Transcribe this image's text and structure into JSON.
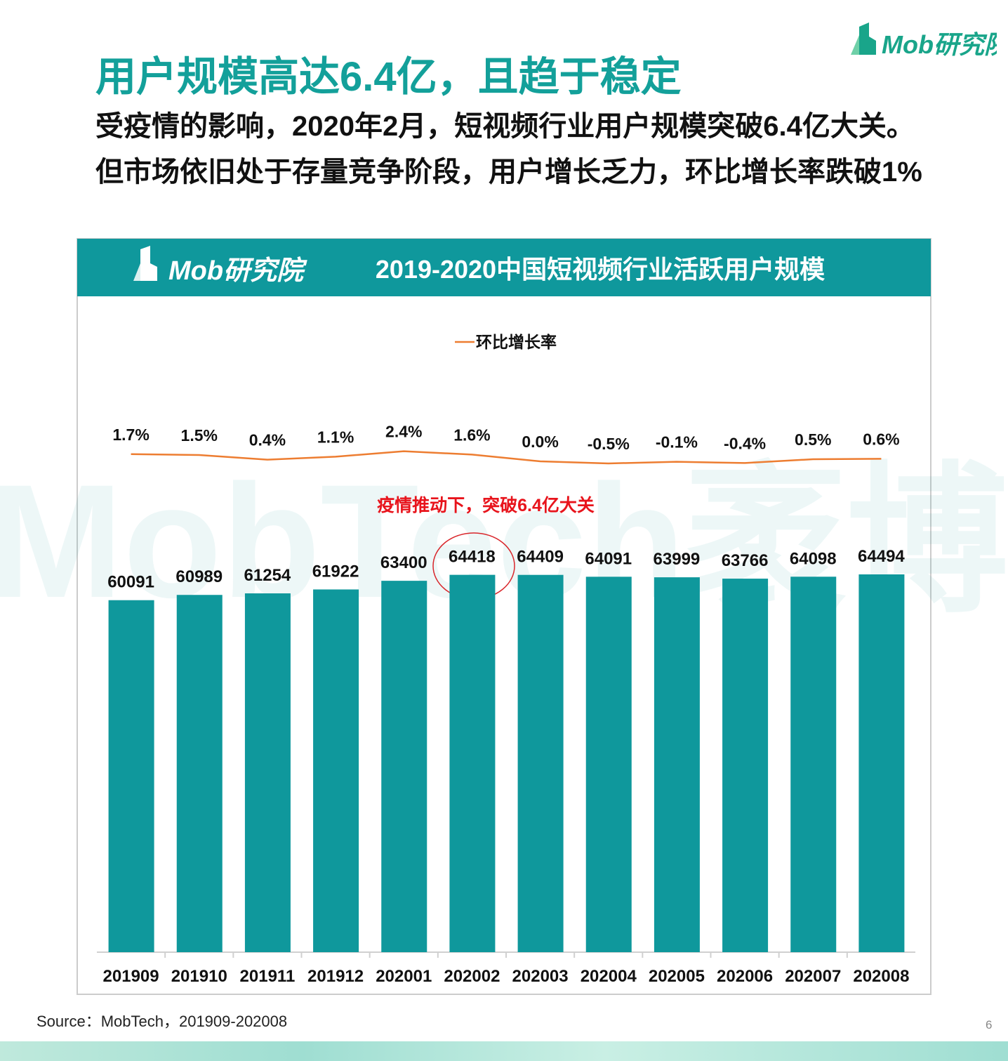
{
  "header": {
    "title": "用户规模高达6.4亿，且趋于稳定",
    "subtitle": "受疫情的影响，2020年2月，短视频行业用户规模突破6.4亿大关。但市场依旧处于存量竞争阶段，用户增长乏力，环比增长率跌破1%",
    "logo": "Mob研究院"
  },
  "chart_data": {
    "type": "bar",
    "title": "2019-2020中国短视频行业活跃用户规模",
    "brand": "Mob研究院",
    "watermark": "MobTech袤博",
    "annotation": "疫情推动下，突破6.4亿大关",
    "categories": [
      "201909",
      "201910",
      "201911",
      "201912",
      "202001",
      "202002",
      "202003",
      "202004",
      "202005",
      "202006",
      "202007",
      "202008"
    ],
    "series": [
      {
        "type": "bar",
        "color": "#0f989c",
        "values": [
          60091,
          60989,
          61254,
          61922,
          63400,
          64418,
          64409,
          64091,
          63999,
          63766,
          64098,
          64494
        ]
      },
      {
        "type": "line",
        "name": "环比增长率",
        "color": "#ed7d31",
        "values": [
          1.7,
          1.5,
          0.4,
          1.1,
          2.4,
          1.6,
          0.0,
          -0.5,
          -0.1,
          -0.4,
          0.5,
          0.6
        ],
        "value_labels": [
          "1.7%",
          "1.5%",
          "0.4%",
          "1.1%",
          "2.4%",
          "1.6%",
          "0.0%",
          "-0.5%",
          "-0.1%",
          "-0.4%",
          "0.5%",
          "0.6%"
        ]
      }
    ]
  },
  "footer": {
    "source": "Source：MobTech，201909-202008",
    "page": "6"
  }
}
